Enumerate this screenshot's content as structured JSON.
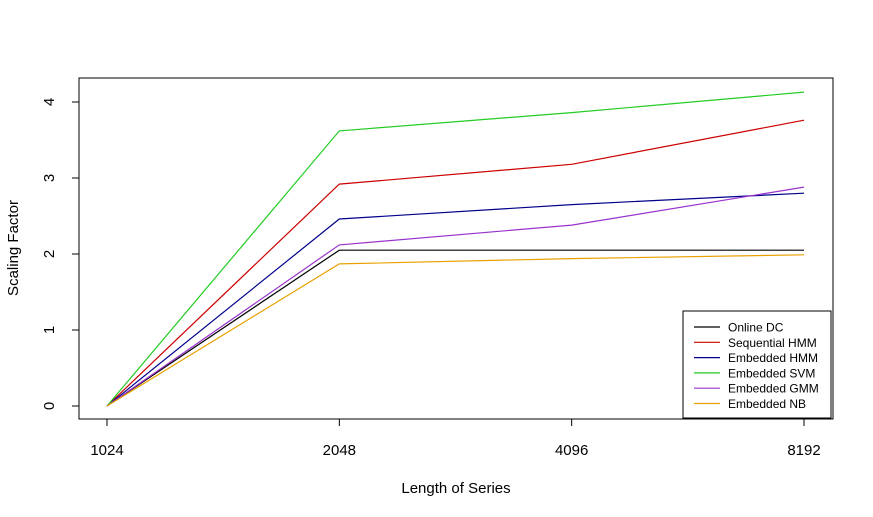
{
  "chart_data": {
    "type": "line",
    "title": "",
    "xlabel": "Length of Series",
    "ylabel": "Scaling Factor",
    "categories": [
      "1024",
      "2048",
      "4096",
      "8192"
    ],
    "ylim": [
      -0.05,
      4.4
    ],
    "yticks": [
      0,
      1,
      2,
      3,
      4
    ],
    "grid": false,
    "legend_position": "bottom-right",
    "series": [
      {
        "name": "Online DC",
        "color": "#000000",
        "values": [
          0,
          2.05,
          2.05,
          2.05
        ]
      },
      {
        "name": "Sequential HMM",
        "color": "#cc0000",
        "values": [
          0,
          2.92,
          3.18,
          3.76
        ]
      },
      {
        "name": "Embedded HMM",
        "color": "#00008b",
        "values": [
          0,
          2.46,
          2.65,
          2.8
        ]
      },
      {
        "name": "Embedded SVM",
        "color": "#22cc22",
        "values": [
          0,
          3.62,
          3.86,
          4.13
        ]
      },
      {
        "name": "Embedded GMM",
        "color": "#9932cc",
        "values": [
          0,
          2.12,
          2.38,
          2.88
        ]
      },
      {
        "name": "Embedded NB",
        "color": "#e8a000",
        "values": [
          0,
          1.87,
          1.94,
          1.99
        ]
      }
    ]
  }
}
